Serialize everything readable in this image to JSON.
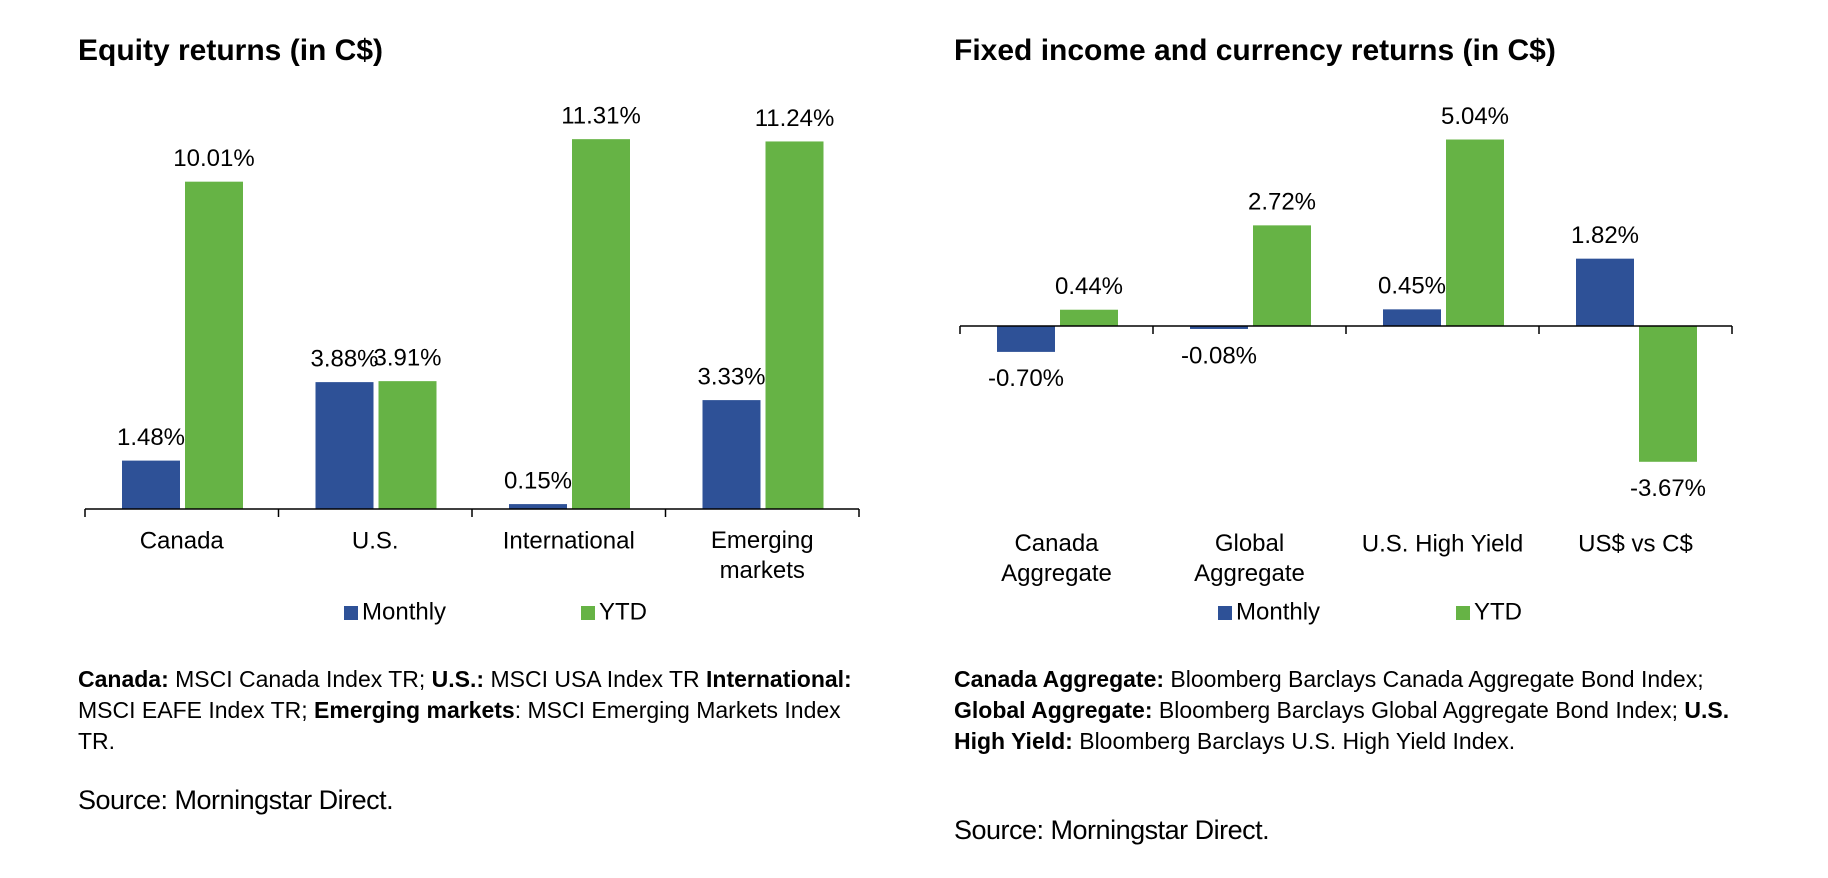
{
  "chart_data": [
    {
      "type": "bar",
      "title": "Equity returns (in C$)",
      "categories": [
        "Canada",
        "U.S.",
        "International",
        "Emerging\nmarkets"
      ],
      "series": [
        {
          "name": "Monthly",
          "color": "#2e5197",
          "values": [
            1.48,
            3.88,
            0.15,
            3.33
          ],
          "value_labels": [
            "1.48%",
            "3.88%",
            "0.15%",
            "3.33%"
          ]
        },
        {
          "name": "YTD",
          "color": "#66b345",
          "values": [
            10.01,
            3.91,
            11.31,
            11.24
          ],
          "value_labels": [
            "10.01%",
            "3.91%",
            "11.31%",
            "11.24%"
          ]
        }
      ],
      "notes": [
        {
          "text": "Canada:",
          "bold": true
        },
        {
          "text": " MSCI Canada Index TR; ",
          "bold": false
        },
        {
          "text": "U.S.:",
          "bold": true
        },
        {
          "text": " MSCI USA Index TR ",
          "bold": false
        },
        {
          "text": "International:",
          "bold": true
        },
        {
          "text": " MSCI EAFE Index TR; ",
          "bold": false
        },
        {
          "text": "Emerging markets",
          "bold": true
        },
        {
          "text": ": MSCI Emerging Markets Index TR.",
          "bold": false
        }
      ],
      "source": "Source: Morningstar Direct."
    },
    {
      "type": "bar",
      "title": "Fixed income and currency returns (in C$)",
      "categories": [
        "Canada\nAggregate",
        "Global\nAggregate",
        "U.S. High Yield",
        "US$ vs C$"
      ],
      "series": [
        {
          "name": "Monthly",
          "color": "#2e5197",
          "values": [
            -0.7,
            -0.08,
            0.45,
            1.82
          ],
          "value_labels": [
            "-0.70%",
            "-0.08%",
            "0.45%",
            "1.82%"
          ]
        },
        {
          "name": "YTD",
          "color": "#66b345",
          "values": [
            0.44,
            2.72,
            5.04,
            -3.67
          ],
          "value_labels": [
            "0.44%",
            "2.72%",
            "5.04%",
            "-3.67%"
          ]
        }
      ],
      "notes": [
        {
          "text": "Canada Aggregate:",
          "bold": true
        },
        {
          "text": " Bloomberg Barclays Canada Aggregate Bond Index; ",
          "bold": false
        },
        {
          "text": "Global Aggregate:",
          "bold": true
        },
        {
          "text": " Bloomberg Barclays Global Aggregate Bond Index; ",
          "bold": false
        },
        {
          "text": "U.S. High Yield:",
          "bold": true
        },
        {
          "text": " Bloomberg Barclays U.S. High Yield Index.",
          "bold": false
        }
      ],
      "source": "Source: Morningstar Direct."
    }
  ]
}
